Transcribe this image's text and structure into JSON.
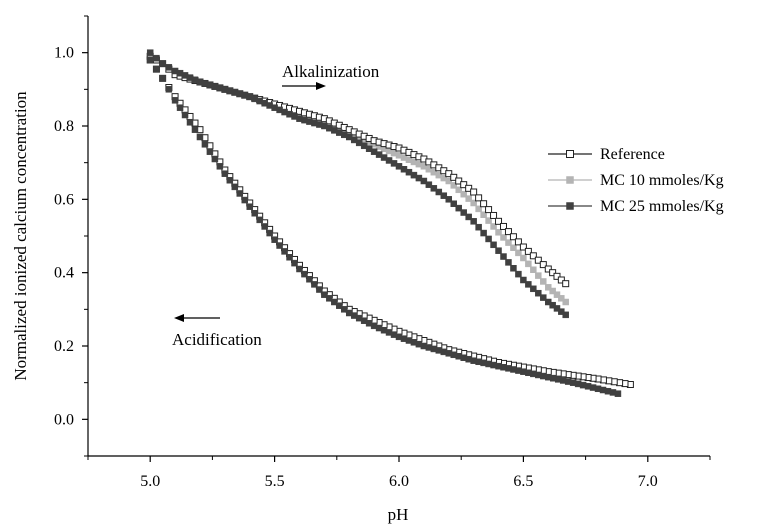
{
  "chart_data": {
    "type": "scatter",
    "xlabel": "pH",
    "ylabel": "Normalized ionized calcium concentration",
    "xlim": [
      4.75,
      7.25
    ],
    "ylim": [
      -0.1,
      1.1
    ],
    "xticks": [
      "5.0",
      "5.5",
      "6.0",
      "6.5",
      "7.0"
    ],
    "yticks": [
      "0.0",
      "0.2",
      "0.4",
      "0.6",
      "0.8",
      "1.0"
    ],
    "legend_position": "right",
    "annotations": [
      {
        "text": "Alkalinization",
        "arrow": "right",
        "anchor": [
          6.0,
          0.965
        ]
      },
      {
        "text": "Acidification",
        "arrow": "left",
        "anchor": [
          5.35,
          0.2
        ]
      }
    ],
    "series": [
      {
        "name": "Reference",
        "marker": "open-square",
        "color": "#333333",
        "alkalinization": {
          "x": [
            5.0,
            5.05,
            5.1,
            5.2,
            5.3,
            5.4,
            5.5,
            5.6,
            5.7,
            5.8,
            5.9,
            6.0,
            6.1,
            6.2,
            6.3,
            6.4,
            6.5,
            6.6,
            6.67
          ],
          "y": [
            0.99,
            0.97,
            0.94,
            0.92,
            0.9,
            0.88,
            0.86,
            0.84,
            0.82,
            0.79,
            0.76,
            0.74,
            0.71,
            0.67,
            0.62,
            0.54,
            0.47,
            0.41,
            0.37
          ]
        },
        "acidification": {
          "x": [
            6.93,
            6.8,
            6.6,
            6.4,
            6.2,
            6.0,
            5.8,
            5.7,
            5.6,
            5.5,
            5.4,
            5.3,
            5.2,
            5.1,
            5.05,
            5.0
          ],
          "y": [
            0.095,
            0.11,
            0.13,
            0.155,
            0.19,
            0.24,
            0.3,
            0.35,
            0.42,
            0.5,
            0.59,
            0.68,
            0.79,
            0.88,
            0.93,
            0.98
          ]
        }
      },
      {
        "name": "MC 10 mmoles/Kg",
        "marker": "filled-square",
        "color": "#b4b4b4",
        "alkalinization": {
          "x": [
            5.0,
            5.05,
            5.1,
            5.2,
            5.3,
            5.4,
            5.5,
            5.6,
            5.7,
            5.8,
            5.9,
            6.0,
            6.1,
            6.2,
            6.3,
            6.4,
            6.5,
            6.6,
            6.67
          ],
          "y": [
            0.99,
            0.97,
            0.94,
            0.92,
            0.9,
            0.88,
            0.86,
            0.83,
            0.81,
            0.78,
            0.75,
            0.72,
            0.69,
            0.65,
            0.59,
            0.51,
            0.44,
            0.36,
            0.32
          ]
        },
        "acidification": {
          "x": [
            6.93,
            6.8,
            6.6,
            6.4,
            6.2,
            6.0,
            5.8,
            5.7,
            5.6,
            5.5,
            5.4,
            5.3,
            5.2,
            5.1,
            5.05,
            5.0
          ],
          "y": [
            0.095,
            0.11,
            0.13,
            0.155,
            0.19,
            0.24,
            0.3,
            0.35,
            0.42,
            0.5,
            0.59,
            0.68,
            0.79,
            0.88,
            0.93,
            0.98
          ]
        }
      },
      {
        "name": "MC 25 mmoles/Kg",
        "marker": "filled-square",
        "color": "#404040",
        "alkalinization": {
          "x": [
            5.0,
            5.05,
            5.1,
            5.2,
            5.3,
            5.4,
            5.5,
            5.6,
            5.7,
            5.8,
            5.9,
            6.0,
            6.1,
            6.2,
            6.3,
            6.4,
            6.5,
            6.6,
            6.67
          ],
          "y": [
            1.0,
            0.97,
            0.95,
            0.92,
            0.9,
            0.88,
            0.85,
            0.82,
            0.8,
            0.77,
            0.73,
            0.69,
            0.65,
            0.6,
            0.54,
            0.46,
            0.38,
            0.32,
            0.285
          ]
        },
        "acidification": {
          "x": [
            6.88,
            6.7,
            6.5,
            6.3,
            6.1,
            6.0,
            5.9,
            5.8,
            5.7,
            5.6,
            5.5,
            5.4,
            5.3,
            5.2,
            5.1,
            5.05,
            5.0
          ],
          "y": [
            0.07,
            0.1,
            0.13,
            0.16,
            0.2,
            0.225,
            0.255,
            0.29,
            0.34,
            0.41,
            0.49,
            0.58,
            0.67,
            0.77,
            0.87,
            0.93,
            0.98
          ]
        }
      }
    ]
  }
}
